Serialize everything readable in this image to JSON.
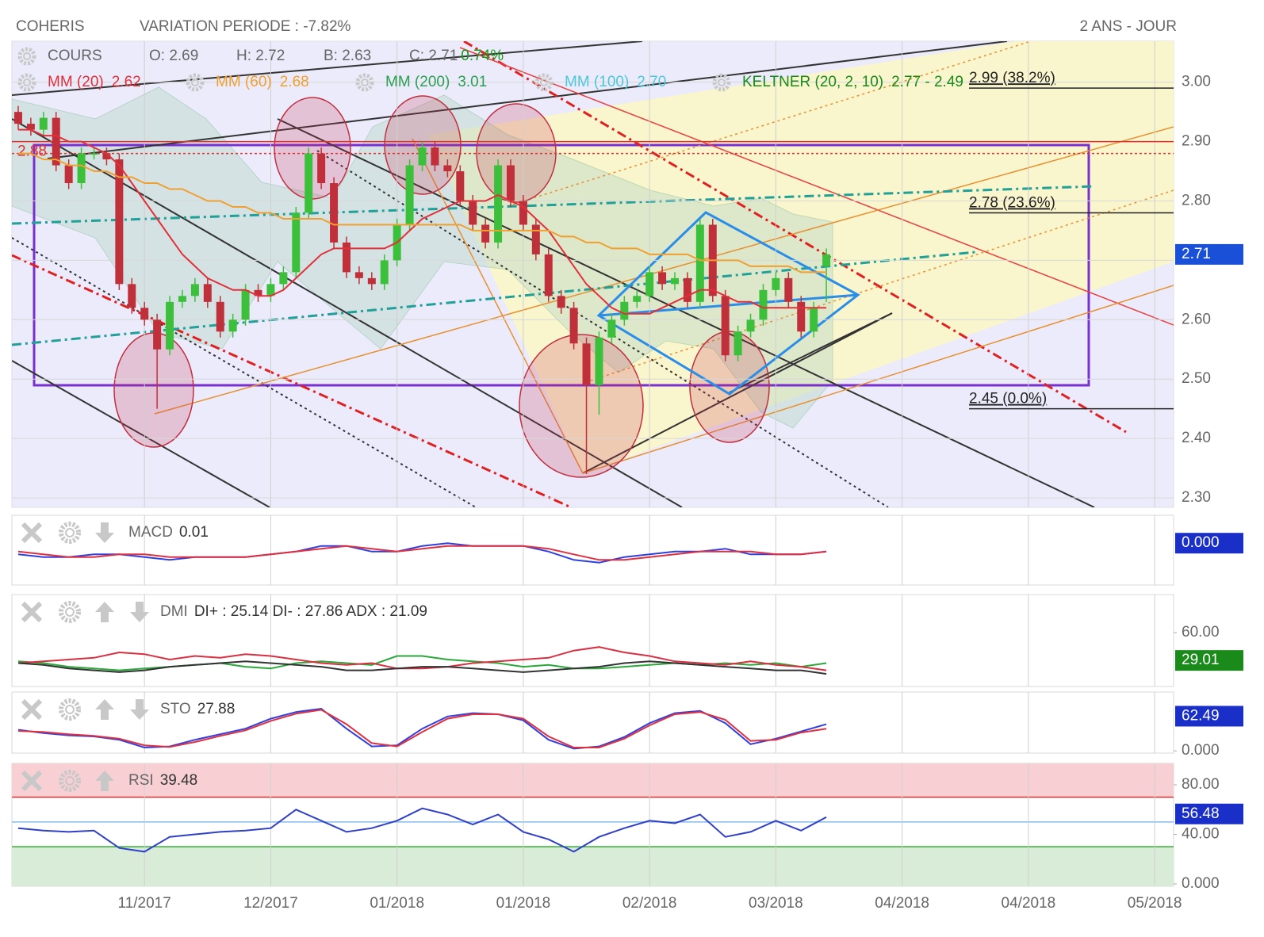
{
  "chart_data": [
    {
      "type": "candlestick",
      "title": "COHERIS",
      "subtitle": "VARIATION PERIODE : -7.82%",
      "period_label": "2 ANS - JOUR",
      "x": [
        0,
        1,
        2,
        3,
        4,
        5,
        6,
        7,
        8,
        9,
        10,
        11,
        12,
        13,
        14,
        15,
        16,
        17,
        18,
        19,
        20,
        21,
        22,
        23,
        24,
        25,
        26,
        27,
        28,
        29,
        30,
        31,
        32,
        33,
        34,
        35,
        36,
        37,
        38,
        39,
        40,
        41,
        42,
        43,
        44,
        45,
        46,
        47,
        48,
        49,
        50,
        51,
        52,
        53,
        54,
        55,
        56,
        57,
        58,
        59,
        60,
        61,
        62,
        63,
        64
      ],
      "open": [
        2.95,
        2.93,
        2.92,
        2.94,
        2.86,
        2.83,
        2.88,
        2.88,
        2.87,
        2.66,
        2.62,
        2.6,
        2.55,
        2.63,
        2.64,
        2.66,
        2.63,
        2.58,
        2.6,
        2.65,
        2.64,
        2.66,
        2.68,
        2.78,
        2.88,
        2.83,
        2.73,
        2.68,
        2.67,
        2.66,
        2.7,
        2.76,
        2.86,
        2.89,
        2.86,
        2.85,
        2.8,
        2.76,
        2.73,
        2.86,
        2.8,
        2.76,
        2.71,
        2.64,
        2.62,
        2.56,
        2.49,
        2.57,
        2.6,
        2.63,
        2.64,
        2.68,
        2.66,
        2.67,
        2.63,
        2.76,
        2.64,
        2.54,
        2.58,
        2.6,
        2.65,
        2.67,
        2.63,
        2.58,
        2.69
      ],
      "high": [
        2.96,
        2.94,
        2.95,
        2.95,
        2.87,
        2.89,
        2.89,
        2.89,
        2.88,
        2.67,
        2.63,
        2.61,
        2.64,
        2.65,
        2.67,
        2.67,
        2.64,
        2.61,
        2.66,
        2.66,
        2.67,
        2.69,
        2.79,
        2.89,
        2.89,
        2.84,
        2.74,
        2.69,
        2.68,
        2.71,
        2.77,
        2.87,
        2.9,
        2.9,
        2.87,
        2.86,
        2.81,
        2.77,
        2.87,
        2.87,
        2.81,
        2.77,
        2.72,
        2.65,
        2.63,
        2.57,
        2.58,
        2.61,
        2.64,
        2.65,
        2.69,
        2.69,
        2.68,
        2.68,
        2.77,
        2.77,
        2.65,
        2.59,
        2.61,
        2.66,
        2.68,
        2.68,
        2.64,
        2.63,
        2.72
      ],
      "low": [
        2.92,
        2.91,
        2.91,
        2.85,
        2.82,
        2.82,
        2.87,
        2.86,
        2.65,
        2.61,
        2.59,
        2.45,
        2.54,
        2.62,
        2.63,
        2.62,
        2.57,
        2.57,
        2.59,
        2.63,
        2.63,
        2.65,
        2.67,
        2.77,
        2.82,
        2.72,
        2.67,
        2.66,
        2.65,
        2.65,
        2.69,
        2.75,
        2.85,
        2.85,
        2.84,
        2.79,
        2.75,
        2.72,
        2.72,
        2.79,
        2.75,
        2.7,
        2.63,
        2.61,
        2.55,
        2.34,
        2.44,
        2.56,
        2.59,
        2.62,
        2.63,
        2.65,
        2.65,
        2.62,
        2.62,
        2.63,
        2.53,
        2.53,
        2.57,
        2.59,
        2.64,
        2.62,
        2.57,
        2.57,
        2.63
      ],
      "close": [
        2.93,
        2.92,
        2.94,
        2.86,
        2.83,
        2.88,
        2.88,
        2.87,
        2.66,
        2.62,
        2.6,
        2.55,
        2.63,
        2.64,
        2.66,
        2.63,
        2.58,
        2.6,
        2.65,
        2.64,
        2.66,
        2.68,
        2.78,
        2.88,
        2.83,
        2.73,
        2.68,
        2.67,
        2.66,
        2.7,
        2.76,
        2.86,
        2.89,
        2.86,
        2.85,
        2.8,
        2.76,
        2.73,
        2.86,
        2.8,
        2.76,
        2.71,
        2.64,
        2.62,
        2.56,
        2.49,
        2.57,
        2.6,
        2.63,
        2.64,
        2.68,
        2.66,
        2.67,
        2.63,
        2.76,
        2.64,
        2.54,
        2.58,
        2.6,
        2.65,
        2.67,
        2.63,
        2.58,
        2.62,
        2.71
      ],
      "up_color": "#3cc03c",
      "down_color": "#c0303a",
      "ohlc_legend": {
        "name": "COURS",
        "items": [
          "O: 2.69",
          "H: 2.72",
          "B: 2.63",
          "C: 2.71"
        ],
        "change": "0.74%",
        "change_color": "#1a9a1a"
      },
      "series": [
        {
          "name": "MM (20)",
          "legend_value": "2.62",
          "color": "#e0303a",
          "values": [
            2.92,
            2.92,
            2.91,
            2.91,
            2.9,
            2.9,
            2.89,
            2.88,
            2.86,
            2.83,
            2.8,
            2.77,
            2.74,
            2.71,
            2.69,
            2.67,
            2.66,
            2.65,
            2.65,
            2.64,
            2.64,
            2.65,
            2.67,
            2.69,
            2.71,
            2.72,
            2.72,
            2.72,
            2.72,
            2.72,
            2.73,
            2.75,
            2.77,
            2.78,
            2.79,
            2.8,
            2.8,
            2.8,
            2.81,
            2.8,
            2.79,
            2.77,
            2.75,
            2.72,
            2.69,
            2.66,
            2.64,
            2.62,
            2.61,
            2.61,
            2.61,
            2.62,
            2.63,
            2.64,
            2.65,
            2.65,
            2.64,
            2.63,
            2.63,
            2.62,
            2.62,
            2.62,
            2.62,
            2.62,
            2.62
          ]
        },
        {
          "name": "MM (60)",
          "legend_value": "2.68",
          "color": "#f0a030",
          "values": [
            2.88,
            2.88,
            2.87,
            2.87,
            2.86,
            2.86,
            2.85,
            2.85,
            2.84,
            2.84,
            2.83,
            2.83,
            2.82,
            2.82,
            2.81,
            2.8,
            2.8,
            2.79,
            2.79,
            2.78,
            2.78,
            2.77,
            2.77,
            2.77,
            2.77,
            2.76,
            2.76,
            2.76,
            2.76,
            2.76,
            2.76,
            2.76,
            2.76,
            2.76,
            2.76,
            2.76,
            2.75,
            2.75,
            2.75,
            2.75,
            2.75,
            2.75,
            2.75,
            2.74,
            2.74,
            2.73,
            2.73,
            2.72,
            2.72,
            2.72,
            2.71,
            2.71,
            2.71,
            2.71,
            2.7,
            2.7,
            2.7,
            2.7,
            2.69,
            2.69,
            2.69,
            2.69,
            2.68,
            2.68,
            2.68
          ]
        },
        {
          "name": "MM (200)",
          "legend_value": "3.01",
          "color": "#2aa050"
        },
        {
          "name": "MM (100)",
          "legend_value": "2.70",
          "color": "#4cc8d8"
        },
        {
          "name": "KELTNER (20, 2, 10)",
          "legend_value": "2.77 - 2.49",
          "color": "#1a8a1a"
        }
      ],
      "fib_levels": [
        {
          "value": 2.99,
          "label": "2.99  (38.2%)"
        },
        {
          "value": 2.78,
          "label": "2.78  (23.6%)"
        },
        {
          "value": 2.45,
          "label": "2.45  (0.0%)"
        }
      ],
      "price_lines": [
        {
          "value": 2.9,
          "color": "#e03030",
          "style": "solid"
        },
        {
          "value": 2.88,
          "label": "2.88",
          "color": "#e03030",
          "style": "dotted"
        }
      ],
      "last_value": {
        "value": 2.71,
        "label": "2.71"
      },
      "tag_color": "#1a4fd8",
      "xlim": [
        -0.5,
        91.5
      ],
      "ylim": [
        2.284,
        3.069
      ],
      "yticks": [
        {
          "value": 2.3,
          "label": "2.30"
        },
        {
          "value": 2.4,
          "label": "2.40"
        },
        {
          "value": 2.5,
          "label": "2.50"
        },
        {
          "value": 2.6,
          "label": "2.60"
        },
        {
          "value": 2.7,
          "label": "2.70"
        },
        {
          "value": 2.8,
          "label": "2.80"
        },
        {
          "value": 2.9,
          "label": "2.90"
        },
        {
          "value": 3.0,
          "label": "3.00"
        }
      ],
      "grid": true
    },
    {
      "type": "line",
      "title": "MACD",
      "subtitle": "0.01",
      "x": [
        0,
        2,
        4,
        6,
        8,
        10,
        12,
        14,
        16,
        18,
        20,
        22,
        24,
        26,
        28,
        30,
        32,
        34,
        36,
        38,
        40,
        42,
        44,
        46,
        48,
        50,
        52,
        54,
        56,
        58,
        60,
        62,
        64
      ],
      "series": [
        {
          "color": "#3040e0",
          "values": [
            -0.04,
            -0.05,
            -0.05,
            -0.04,
            -0.04,
            -0.05,
            -0.06,
            -0.05,
            -0.05,
            -0.05,
            -0.04,
            -0.03,
            -0.01,
            -0.01,
            -0.03,
            -0.03,
            -0.01,
            0.0,
            -0.01,
            -0.01,
            -0.01,
            -0.03,
            -0.06,
            -0.07,
            -0.05,
            -0.04,
            -0.03,
            -0.03,
            -0.02,
            -0.04,
            -0.04,
            -0.04,
            -0.03
          ]
        },
        {
          "color": "#e03040",
          "values": [
            -0.03,
            -0.04,
            -0.05,
            -0.05,
            -0.04,
            -0.04,
            -0.05,
            -0.05,
            -0.05,
            -0.05,
            -0.04,
            -0.03,
            -0.02,
            -0.01,
            -0.02,
            -0.03,
            -0.02,
            -0.01,
            -0.01,
            -0.01,
            -0.01,
            -0.02,
            -0.04,
            -0.06,
            -0.06,
            -0.05,
            -0.04,
            -0.03,
            -0.03,
            -0.03,
            -0.04,
            -0.04,
            -0.03
          ]
        }
      ],
      "last_value": {
        "value": 0,
        "label": "0.000"
      },
      "tag_color": "#1a2fc8",
      "xlim": [
        -0.5,
        91.5
      ],
      "ylim": [
        -0.15,
        0.1
      ],
      "yticks": []
    },
    {
      "type": "line",
      "title": "DMI",
      "subtitle": "DI+ : 25.14 DI- : 27.86 ADX : 21.09",
      "x": [
        0,
        2,
        4,
        6,
        8,
        10,
        12,
        14,
        16,
        18,
        20,
        22,
        24,
        26,
        28,
        30,
        32,
        34,
        36,
        38,
        40,
        42,
        44,
        46,
        48,
        50,
        52,
        54,
        56,
        58,
        60,
        62,
        64
      ],
      "series": [
        {
          "color": "#2aa83a",
          "values": [
            28,
            26,
            22,
            20,
            18,
            20,
            22,
            24,
            26,
            22,
            20,
            26,
            28,
            26,
            24,
            34,
            34,
            30,
            28,
            26,
            22,
            24,
            20,
            20,
            22,
            24,
            26,
            24,
            26,
            24,
            26,
            22,
            26
          ]
        },
        {
          "color": "#d83040",
          "values": [
            26,
            28,
            30,
            32,
            38,
            36,
            30,
            34,
            32,
            36,
            34,
            30,
            26,
            24,
            26,
            20,
            20,
            22,
            26,
            28,
            30,
            32,
            40,
            44,
            38,
            34,
            28,
            26,
            24,
            28,
            24,
            22,
            18
          ]
        },
        {
          "color": "#333333",
          "values": [
            26,
            24,
            20,
            18,
            16,
            18,
            22,
            24,
            26,
            28,
            26,
            24,
            22,
            18,
            18,
            20,
            22,
            22,
            20,
            18,
            16,
            18,
            20,
            22,
            26,
            28,
            26,
            24,
            22,
            20,
            18,
            18,
            14
          ]
        }
      ],
      "last_value": {
        "value": 29.01,
        "label": "29.01"
      },
      "tag_color": "#1a8a1a",
      "xlim": [
        -0.5,
        91.5
      ],
      "ylim": [
        0,
        102.4
      ],
      "yticks": [
        {
          "value": 60,
          "label": "60.00"
        }
      ]
    },
    {
      "type": "line",
      "title": "STO",
      "subtitle": "27.88",
      "x": [
        0,
        2,
        4,
        6,
        8,
        10,
        12,
        14,
        16,
        18,
        20,
        22,
        24,
        26,
        28,
        30,
        32,
        34,
        36,
        38,
        40,
        42,
        44,
        46,
        48,
        50,
        52,
        54,
        56,
        58,
        60,
        62,
        64
      ],
      "series": [
        {
          "color": "#3040e0",
          "values": [
            38,
            32,
            28,
            26,
            20,
            6,
            8,
            20,
            30,
            40,
            58,
            70,
            76,
            40,
            8,
            10,
            40,
            62,
            68,
            66,
            55,
            20,
            4,
            8,
            25,
            50,
            68,
            72,
            50,
            12,
            22,
            35,
            48
          ]
        },
        {
          "color": "#e03040",
          "values": [
            36,
            34,
            30,
            27,
            22,
            10,
            7,
            16,
            27,
            37,
            54,
            67,
            74,
            48,
            14,
            8,
            34,
            58,
            66,
            66,
            58,
            26,
            6,
            6,
            22,
            46,
            66,
            70,
            56,
            18,
            20,
            33,
            40
          ]
        }
      ],
      "last_value": {
        "value": 62.49,
        "label": "62.49"
      },
      "tag_color": "#1a2fc8",
      "xlim": [
        -0.5,
        91.5
      ],
      "ylim": [
        -4,
        106
      ],
      "yticks": [
        {
          "value": 0,
          "label": "0.000"
        }
      ]
    },
    {
      "type": "line",
      "title": "RSI",
      "subtitle": "39.48",
      "x": [
        0,
        2,
        4,
        6,
        8,
        10,
        12,
        14,
        16,
        18,
        20,
        22,
        24,
        26,
        28,
        30,
        32,
        34,
        36,
        38,
        40,
        42,
        44,
        46,
        48,
        50,
        52,
        54,
        56,
        58,
        60,
        62,
        64
      ],
      "series": [
        {
          "color": "#3040c8",
          "values": [
            45,
            43,
            42,
            43,
            29,
            26,
            38,
            40,
            42,
            43,
            45,
            60,
            51,
            42,
            45,
            51,
            61,
            56,
            48,
            56,
            42,
            36,
            26,
            38,
            45,
            51,
            49,
            56,
            38,
            42,
            51,
            43,
            54
          ]
        }
      ],
      "levels": [
        {
          "value": 70,
          "color": "#e03030",
          "fill": "#f8d0d4"
        },
        {
          "value": 50,
          "color": "#88bbee"
        },
        {
          "value": 30,
          "color": "#33aa33",
          "fill": "#d8ecd8"
        }
      ],
      "last_value": {
        "value": 56.48,
        "label": "56.48"
      },
      "tag_color": "#1a2fc8",
      "xlim": [
        -0.5,
        91.5
      ],
      "ylim": [
        -1.9,
        97.3
      ],
      "yticks": [
        {
          "value": 0,
          "label": "0.000"
        },
        {
          "value": 40,
          "label": "40.00"
        },
        {
          "value": 80,
          "label": "80.00"
        }
      ],
      "xticks": [
        {
          "value": 10,
          "label": "11/2017"
        },
        {
          "value": 20,
          "label": "12/2017"
        },
        {
          "value": 30,
          "label": "01/2018"
        },
        {
          "value": 40,
          "label": "01/2018"
        },
        {
          "value": 50,
          "label": "02/2018"
        },
        {
          "value": 60,
          "label": "03/2018"
        },
        {
          "value": 70,
          "label": "04/2018"
        },
        {
          "value": 80,
          "label": "04/2018"
        },
        {
          "value": 90,
          "label": "05/2018"
        }
      ]
    }
  ]
}
